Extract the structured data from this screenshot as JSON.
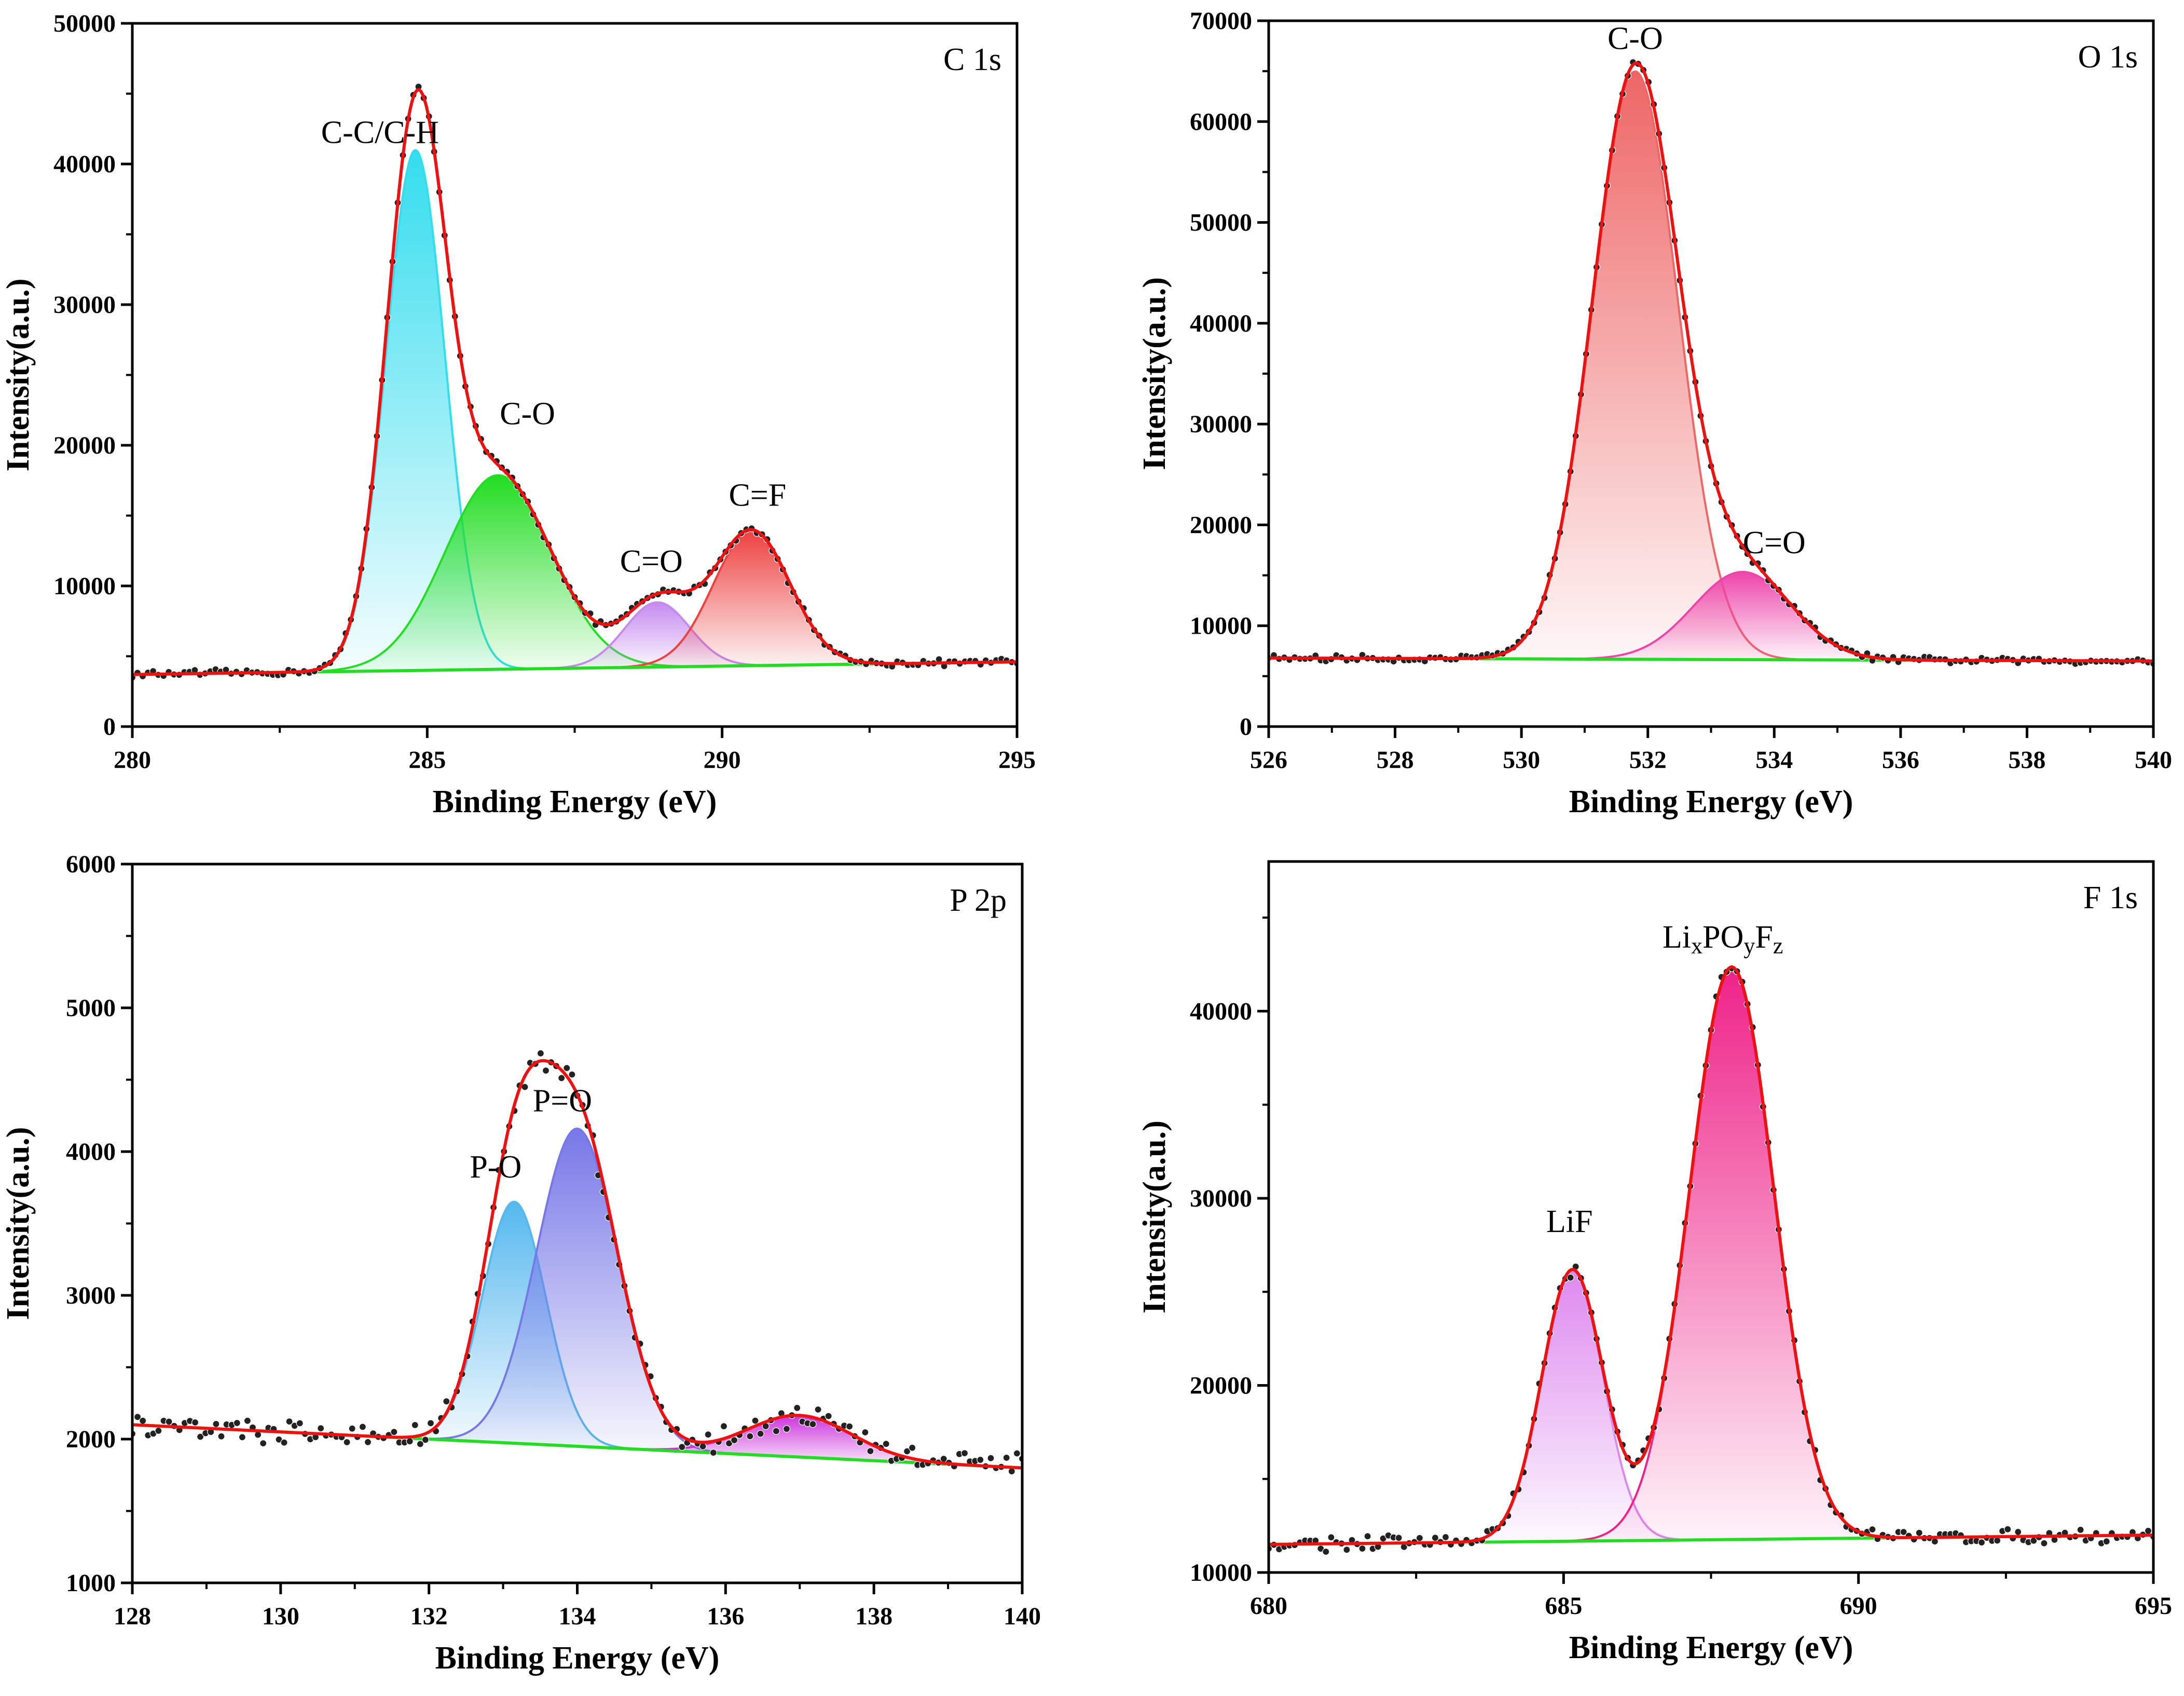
{
  "chart_data": [
    {
      "type": "line",
      "panel_label": "C 1s",
      "xlabel": "Binding Energy (eV)",
      "ylabel": "Intensity(a.u.)",
      "xlim": [
        280,
        295
      ],
      "ylim": [
        0,
        50000
      ],
      "xticks": [
        280,
        285,
        290,
        295
      ],
      "xtick_labels": [
        "280",
        "285",
        "290",
        "295"
      ],
      "xminor": [
        282.5,
        287.5,
        292.5
      ],
      "yticks": [
        0,
        10000,
        20000,
        30000,
        40000,
        50000
      ],
      "ytick_labels": [
        "0",
        "10000",
        "20000",
        "30000",
        "40000",
        "50000"
      ],
      "yminor": [
        5000,
        15000,
        25000,
        35000,
        45000
      ],
      "grid": false,
      "background": {
        "x0": 280,
        "y0": 3700,
        "x1": 295,
        "y1": 4600
      },
      "raw_noise": 120,
      "peaks": [
        {
          "name": "C-C/C-H",
          "center": 284.8,
          "amplitude": 37000,
          "sigma": 0.5,
          "color": "#33ddee",
          "label_at": [
            284.2,
            41500
          ]
        },
        {
          "name": "C-O",
          "center": 286.2,
          "amplitude": 13800,
          "sigma": 0.9,
          "color": "#22dd22",
          "label_at": [
            286.7,
            21500
          ]
        },
        {
          "name": "C=O",
          "center": 288.9,
          "amplitude": 4600,
          "sigma": 0.55,
          "color": "#c58af0",
          "label_at": [
            288.8,
            11000
          ]
        },
        {
          "name": "C=F",
          "center": 290.5,
          "amplitude": 9600,
          "sigma": 0.65,
          "color": "#ee4040",
          "label_at": [
            290.6,
            15700
          ]
        }
      ]
    },
    {
      "type": "line",
      "panel_label": "O 1s",
      "xlabel": "Binding Energy (eV)",
      "ylabel": "Intensity(a.u.)",
      "xlim": [
        526,
        540
      ],
      "ylim": [
        0,
        70000
      ],
      "xticks": [
        526,
        528,
        530,
        532,
        534,
        536,
        538,
        540
      ],
      "xtick_labels": [
        "526",
        "528",
        "530",
        "532",
        "534",
        "536",
        "538",
        "540"
      ],
      "xminor": [
        527,
        529,
        531,
        533,
        535,
        537,
        539
      ],
      "yticks": [
        0,
        10000,
        20000,
        30000,
        40000,
        50000,
        60000,
        70000
      ],
      "ytick_labels": [
        "0",
        "10000",
        "20000",
        "30000",
        "40000",
        "50000",
        "60000",
        "70000"
      ],
      "yminor": [
        5000,
        15000,
        25000,
        35000,
        45000,
        55000,
        65000
      ],
      "grid": false,
      "background": {
        "x0": 526,
        "y0": 6800,
        "x1": 540,
        "y1": 6500
      },
      "raw_noise": 150,
      "peaks": [
        {
          "name": "C-O",
          "center": 531.8,
          "amplitude": 58300,
          "sigma": 0.68,
          "color": "#ee6666",
          "label_at": [
            531.8,
            67200
          ]
        },
        {
          "name": "C=O",
          "center": 533.5,
          "amplitude": 8700,
          "sigma": 0.78,
          "color": "#ee44aa",
          "label_at": [
            534.0,
            17200
          ]
        }
      ]
    },
    {
      "type": "line",
      "panel_label": "P 2p",
      "xlabel": "Binding Energy (eV)",
      "ylabel": "Intensity(a.u.)",
      "xlim": [
        128,
        140
      ],
      "ylim": [
        1000,
        6000
      ],
      "xticks": [
        128,
        130,
        132,
        134,
        136,
        138,
        140
      ],
      "xtick_labels": [
        "128",
        "130",
        "132",
        "134",
        "136",
        "138",
        "140"
      ],
      "xminor": [
        129,
        131,
        133,
        135,
        137,
        139
      ],
      "yticks": [
        1000,
        2000,
        3000,
        4000,
        5000,
        6000
      ],
      "ytick_labels": [
        "1000",
        "2000",
        "3000",
        "4000",
        "5000",
        "6000"
      ],
      "yminor": [
        1500,
        2500,
        3500,
        4500,
        5500
      ],
      "grid": false,
      "background": {
        "x0": 128,
        "y0": 2100,
        "x1": 140,
        "y1": 1800
      },
      "raw_noise": 45,
      "peaks": [
        {
          "name": "P-O",
          "center": 133.15,
          "amplitude": 1680,
          "sigma": 0.43,
          "color": "#55b8ee",
          "label_at": [
            132.9,
            3820
          ]
        },
        {
          "name": "P=O",
          "center": 134.0,
          "amplitude": 2210,
          "sigma": 0.55,
          "color": "#7777e8",
          "label_at": [
            133.8,
            4280
          ]
        },
        {
          "name": "",
          "center": 137.0,
          "amplitude": 290,
          "sigma": 0.7,
          "color": "#cc33dd",
          "label_at": null
        }
      ]
    },
    {
      "type": "line",
      "panel_label": "F 1s",
      "xlabel": "Binding Energy (eV)",
      "ylabel": "Intensity(a.u.)",
      "xlim": [
        680,
        695
      ],
      "ylim": [
        10000,
        48000
      ],
      "xticks": [
        680,
        685,
        690,
        695
      ],
      "xtick_labels": [
        "680",
        "685",
        "690",
        "695"
      ],
      "xminor": [
        682.5,
        687.5,
        692.5
      ],
      "yticks": [
        10000,
        20000,
        30000,
        40000
      ],
      "ytick_labels": [
        "10000",
        "20000",
        "30000",
        "40000"
      ],
      "yminor": [
        15000,
        25000,
        35000,
        45000
      ],
      "grid": false,
      "background": {
        "x0": 680,
        "y0": 11500,
        "x1": 695,
        "y1": 12000
      },
      "raw_noise": 180,
      "peaks": [
        {
          "name": "LiF",
          "center": 685.15,
          "amplitude": 14500,
          "sigma": 0.52,
          "color": "#dd88ee",
          "label_at": [
            685.1,
            28200
          ]
        },
        {
          "name": "Li<sub>x</sub>PO<sub>y</sub>F<sub>z</sub>",
          "label_parts": [
            [
              "Li",
              ""
            ],
            [
              "x",
              "sub"
            ],
            [
              "PO",
              ""
            ],
            [
              "y",
              "sub"
            ],
            [
              "F",
              ""
            ],
            [
              "z",
              "sub"
            ]
          ],
          "center": 687.85,
          "amplitude": 30600,
          "sigma": 0.72,
          "color": "#ee2288",
          "label_at": [
            687.7,
            43400
          ]
        }
      ]
    }
  ]
}
